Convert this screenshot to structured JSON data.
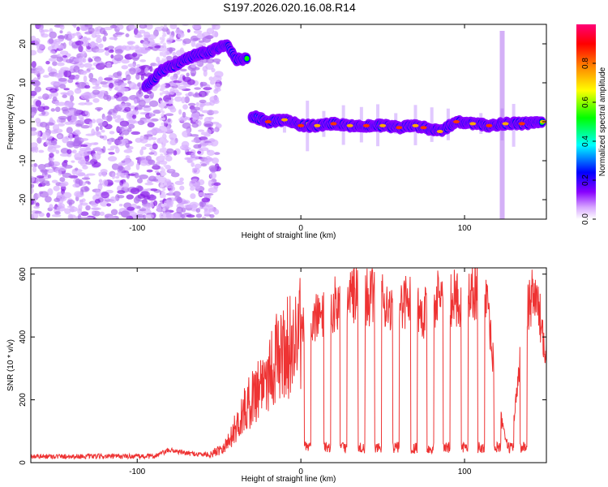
{
  "title": "S197.2026.020.16.08.R14",
  "chart_data": [
    {
      "type": "heatmap",
      "name": "spectrogram",
      "xlabel": "Height of straight line (km)",
      "ylabel": "Frequency (Hz)",
      "xlim": [
        -165,
        150
      ],
      "ylim": [
        -25,
        25
      ],
      "xticks": [
        -100,
        0,
        100
      ],
      "yticks": [
        -20,
        -10,
        0,
        10,
        20
      ],
      "colorbar": {
        "label": "Normalized spectral amplitude",
        "range": [
          0,
          1
        ],
        "ticks": [
          0.0,
          0.2,
          0.4,
          0.6,
          0.8
        ],
        "tick_labels": [
          "0.0",
          "0.2",
          "0.4",
          "0.6",
          "0.8"
        ],
        "colors": [
          "#ffffff",
          "#d8a8ff",
          "#8800ff",
          "#0000ff",
          "#00ffff",
          "#00ff00",
          "#ffff00",
          "#ff8800",
          "#ff0000",
          "#ff00aa"
        ]
      },
      "ridge": [
        {
          "x": -95,
          "y": 9
        },
        {
          "x": -85,
          "y": 13
        },
        {
          "x": -75,
          "y": 15
        },
        {
          "x": -65,
          "y": 17
        },
        {
          "x": -55,
          "y": 18
        },
        {
          "x": -45,
          "y": 20
        },
        {
          "x": -40,
          "y": 16
        },
        {
          "x": -33,
          "y": 16
        },
        {
          "x": -30,
          "y": 1.5
        },
        {
          "x": -20,
          "y": 0
        },
        {
          "x": -10,
          "y": 0.5
        },
        {
          "x": 0,
          "y": -1
        },
        {
          "x": 10,
          "y": -1
        },
        {
          "x": 20,
          "y": -0.5
        },
        {
          "x": 30,
          "y": -1
        },
        {
          "x": 40,
          "y": -1
        },
        {
          "x": 50,
          "y": -1
        },
        {
          "x": 60,
          "y": -1.5
        },
        {
          "x": 70,
          "y": -1
        },
        {
          "x": 75,
          "y": -1.5
        },
        {
          "x": 85,
          "y": -2.5
        },
        {
          "x": 95,
          "y": 0
        },
        {
          "x": 105,
          "y": -0.5
        },
        {
          "x": 115,
          "y": -1
        },
        {
          "x": 125,
          "y": -0.5
        },
        {
          "x": 135,
          "y": -0.5
        },
        {
          "x": 148,
          "y": 0
        }
      ],
      "spikes_x": [
        -10,
        4,
        14,
        26,
        37,
        47,
        58,
        70,
        80,
        90,
        110,
        123,
        130
      ]
    },
    {
      "type": "line",
      "name": "snr",
      "xlabel": "Height of straight line (km)",
      "ylabel": "SNR (10 * v/v)",
      "xlim": [
        -165,
        150
      ],
      "ylim": [
        0,
        620
      ],
      "xticks": [
        -100,
        0,
        100
      ],
      "yticks": [
        0,
        200,
        400,
        600
      ],
      "color": "#ee3333",
      "envelope": [
        {
          "x": -165,
          "y": 20
        },
        {
          "x": -90,
          "y": 20
        },
        {
          "x": -80,
          "y": 40
        },
        {
          "x": -70,
          "y": 30
        },
        {
          "x": -55,
          "y": 25
        },
        {
          "x": -45,
          "y": 60
        },
        {
          "x": -35,
          "y": 160
        },
        {
          "x": -25,
          "y": 250
        },
        {
          "x": -15,
          "y": 330
        },
        {
          "x": -5,
          "y": 380
        },
        {
          "x": 5,
          "y": 440
        },
        {
          "x": 15,
          "y": 480
        },
        {
          "x": 25,
          "y": 520
        },
        {
          "x": 35,
          "y": 540
        },
        {
          "x": 45,
          "y": 520
        },
        {
          "x": 55,
          "y": 500
        },
        {
          "x": 65,
          "y": 520
        },
        {
          "x": 75,
          "y": 480
        },
        {
          "x": 85,
          "y": 530
        },
        {
          "x": 95,
          "y": 520
        },
        {
          "x": 105,
          "y": 540
        },
        {
          "x": 112,
          "y": 570
        },
        {
          "x": 118,
          "y": 300
        },
        {
          "x": 123,
          "y": 120
        },
        {
          "x": 128,
          "y": 30
        },
        {
          "x": 132,
          "y": 230
        },
        {
          "x": 137,
          "y": 480
        },
        {
          "x": 143,
          "y": 540
        },
        {
          "x": 150,
          "y": 360
        }
      ],
      "dropouts_x": [
        2,
        14,
        24,
        35,
        45,
        56,
        67,
        77,
        87,
        98,
        108,
        118,
        126,
        134
      ],
      "dropout_level": 60
    }
  ]
}
